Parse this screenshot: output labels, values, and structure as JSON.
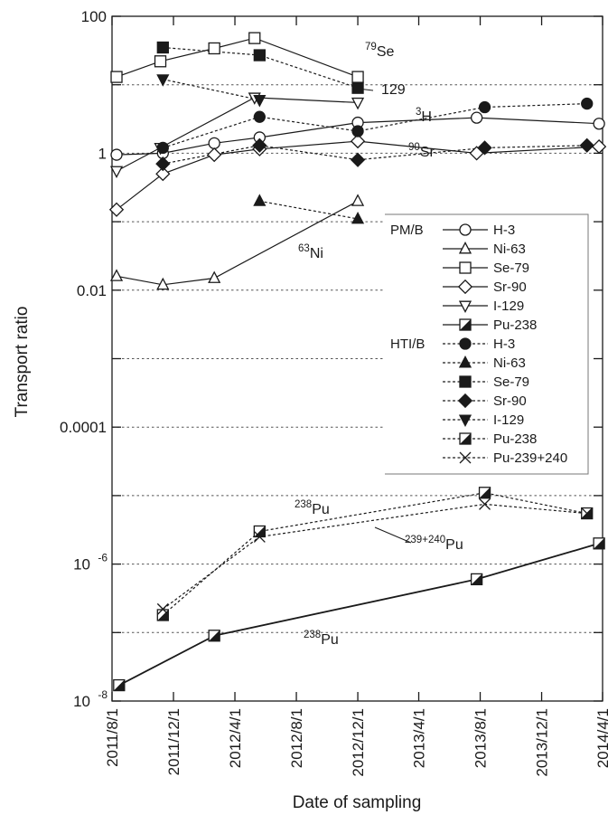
{
  "chart_data": {
    "type": "line",
    "xlabel": "Date of sampling",
    "ylabel": "Transport ratio",
    "log_y": true,
    "ylim": [
      1e-08,
      100
    ],
    "xlim": [
      "2011-08-01",
      "2014-04-01"
    ],
    "x_ticks": [
      "2011/8/1",
      "2011/12/1",
      "2012/4/1",
      "2012/8/1",
      "2012/12/1",
      "2013/4/1",
      "2013/8/1",
      "2013/12/1",
      "2014/4/1"
    ],
    "y_ticks": [
      {
        "value": 100,
        "label": "100"
      },
      {
        "value": 1,
        "label": "1"
      },
      {
        "value": 0.01,
        "label": "0.01"
      },
      {
        "value": 0.0001,
        "label": "0.0001"
      },
      {
        "value": 1e-06,
        "label": "10",
        "sup": "-6"
      },
      {
        "value": 1e-08,
        "label": "10",
        "sup": "-8"
      }
    ],
    "reference_lines": [
      10,
      1,
      0.1,
      0.01,
      0.001,
      0.0001,
      1e-05,
      1e-06,
      1e-07
    ],
    "legend": {
      "placement": "right",
      "groups": [
        {
          "label": "PM/B",
          "entries": [
            "H-3",
            "Ni-63",
            "Se-79",
            "Sr-90",
            "I-129",
            "Pu-238"
          ]
        },
        {
          "label": "HTI/B",
          "entries": [
            "H-3",
            "Ni-63",
            "Se-79",
            "Sr-90",
            "I-129",
            "Pu-238",
            "Pu-239+240"
          ]
        }
      ]
    },
    "annotations": [
      {
        "sup": "79",
        "text": "Se"
      },
      {
        "sup": "",
        "text": "129"
      },
      {
        "sup": "3",
        "text": "H"
      },
      {
        "sup": "90",
        "text": "Sr"
      },
      {
        "sup": "63",
        "text": "Ni"
      },
      {
        "sup": "238",
        "text": "Pu"
      },
      {
        "sup": "239+240",
        "text": "Pu"
      },
      {
        "sup": "238",
        "text": "Pu"
      }
    ],
    "series": [
      {
        "name": "H-3",
        "group": "PM/B",
        "line": "solid",
        "marker": "circle-open",
        "x": [
          "2011-08-10",
          "2011-11-10",
          "2012-02-20",
          "2012-05-20",
          "2012-12-01",
          "2013-07-25",
          "2014-03-25"
        ],
        "y": [
          0.95,
          1.0,
          1.4,
          1.7,
          2.8,
          3.3,
          2.7
        ]
      },
      {
        "name": "Ni-63",
        "group": "PM/B",
        "line": "solid",
        "marker": "triangle-open",
        "x": [
          "2011-08-10",
          "2011-11-10",
          "2012-02-20",
          "2012-12-01"
        ],
        "y": [
          0.016,
          0.012,
          0.015,
          0.2
        ]
      },
      {
        "name": "Se-79",
        "group": "PM/B",
        "line": "solid",
        "marker": "square-open",
        "x": [
          "2011-08-10",
          "2011-11-05",
          "2012-02-20",
          "2012-05-10",
          "2012-12-01"
        ],
        "y": [
          13,
          22,
          34,
          48,
          13
        ]
      },
      {
        "name": "Sr-90",
        "group": "PM/B",
        "line": "solid",
        "marker": "diamond-open",
        "x": [
          "2011-08-10",
          "2011-11-10",
          "2012-02-20",
          "2012-05-20",
          "2012-12-01",
          "2013-07-25",
          "2014-03-25"
        ],
        "y": [
          0.15,
          0.5,
          0.95,
          1.15,
          1.5,
          1.0,
          1.25
        ]
      },
      {
        "name": "I-129",
        "group": "PM/B",
        "line": "solid",
        "marker": "triangle-down-open",
        "x": [
          "2011-08-10",
          "2011-11-05",
          "2012-05-10",
          "2012-12-01"
        ],
        "y": [
          0.55,
          1.2,
          6.5,
          5.5
        ]
      },
      {
        "name": "Pu-238",
        "group": "PM/B",
        "line": "solid",
        "marker": "square-half",
        "x": [
          "2011-08-15",
          "2012-02-20",
          "2013-07-25",
          "2014-03-25"
        ],
        "y": [
          1.7e-08,
          9e-08,
          6e-07,
          2e-06
        ]
      },
      {
        "name": "H-3",
        "group": "HTI/B",
        "line": "dashed",
        "marker": "circle-filled",
        "x": [
          "2011-11-10",
          "2012-05-20",
          "2012-12-01",
          "2013-08-10",
          "2014-03-01"
        ],
        "y": [
          1.2,
          3.4,
          2.1,
          4.7,
          5.3
        ]
      },
      {
        "name": "Ni-63",
        "group": "HTI/B",
        "line": "dashed",
        "marker": "triangle-filled",
        "x": [
          "2012-05-20",
          "2012-12-01"
        ],
        "y": [
          0.2,
          0.11
        ]
      },
      {
        "name": "Se-79",
        "group": "HTI/B",
        "line": "dashed",
        "marker": "square-filled",
        "x": [
          "2011-11-10",
          "2012-05-20",
          "2012-12-01"
        ],
        "y": [
          35,
          27,
          9
        ]
      },
      {
        "name": "Sr-90",
        "group": "HTI/B",
        "line": "dashed",
        "marker": "diamond-filled",
        "x": [
          "2011-11-10",
          "2012-05-20",
          "2012-12-01",
          "2013-08-10",
          "2014-03-01"
        ],
        "y": [
          0.7,
          1.3,
          0.8,
          1.2,
          1.3
        ]
      },
      {
        "name": "I-129",
        "group": "HTI/B",
        "line": "dashed",
        "marker": "triangle-down-filled",
        "x": [
          "2011-11-10",
          "2012-05-20"
        ],
        "y": [
          12,
          6
        ]
      },
      {
        "name": "Pu-238",
        "group": "HTI/B",
        "line": "dashed",
        "marker": "square-half",
        "x": [
          "2011-11-10",
          "2012-05-20",
          "2013-08-10",
          "2014-03-01"
        ],
        "y": [
          1.8e-07,
          3e-06,
          1.1e-05,
          5.5e-06
        ]
      },
      {
        "name": "Pu-239+240",
        "group": "HTI/B",
        "line": "dashed",
        "marker": "cross",
        "x": [
          "2011-11-10",
          "2012-05-20",
          "2013-08-10",
          "2014-03-01"
        ],
        "y": [
          2.2e-07,
          2.5e-06,
          7.5e-06,
          5.5e-06
        ]
      }
    ]
  }
}
